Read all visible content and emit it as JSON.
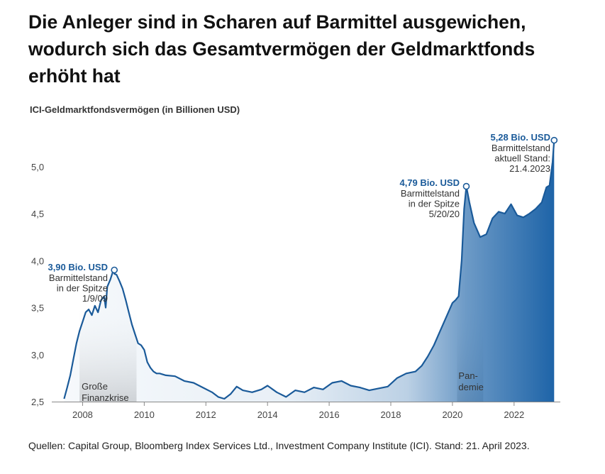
{
  "title": "Die Anleger sind in Scharen auf Barmittel ausgewichen, wodurch sich das Gesamtvermögen der Geldmarktfonds erhöht hat",
  "source": "Quellen: Capital Group, Bloomberg Index Services Ltd., Investment Company Institute (ICI). Stand: 21. April 2023.",
  "colors": {
    "line": "#1a5a99",
    "area": "#1e64a8",
    "shade": "#e4e4e4"
  },
  "chart_data": {
    "type": "area",
    "title": "ICI-Geldmarktfondsvermögen (in Billionen USD)",
    "xlabel": "",
    "ylabel": "",
    "xlim": [
      2007.0,
      2023.5
    ],
    "ylim": [
      2.5,
      5.3
    ],
    "xticks": [
      {
        "value": 2008,
        "label": "2008"
      },
      {
        "value": 2010,
        "label": "2010"
      },
      {
        "value": 2012,
        "label": "2012"
      },
      {
        "value": 2014,
        "label": "2014"
      },
      {
        "value": 2016,
        "label": "2016"
      },
      {
        "value": 2018,
        "label": "2018"
      },
      {
        "value": 2020,
        "label": "2020"
      },
      {
        "value": 2022,
        "label": "2022"
      }
    ],
    "yticks": [
      {
        "value": 2.5,
        "label": "2,5"
      },
      {
        "value": 3.0,
        "label": "3,0"
      },
      {
        "value": 3.5,
        "label": "3,5"
      },
      {
        "value": 4.0,
        "label": "4,0"
      },
      {
        "value": 4.5,
        "label": "4,5"
      },
      {
        "value": 5.0,
        "label": "5,0"
      }
    ],
    "series": [
      {
        "name": "ICI-Geldmarktfondsvermögen",
        "x": [
          2007.4,
          2007.5,
          2007.6,
          2007.7,
          2007.8,
          2007.9,
          2008.0,
          2008.1,
          2008.2,
          2008.3,
          2008.4,
          2008.5,
          2008.6,
          2008.7,
          2008.75,
          2008.8,
          2008.9,
          2009.0,
          2009.03,
          2009.1,
          2009.2,
          2009.3,
          2009.4,
          2009.5,
          2009.6,
          2009.7,
          2009.8,
          2009.9,
          2010.0,
          2010.1,
          2010.2,
          2010.3,
          2010.4,
          2010.5,
          2010.7,
          2011.0,
          2011.3,
          2011.6,
          2011.9,
          2012.2,
          2012.4,
          2012.6,
          2012.8,
          2013.0,
          2013.2,
          2013.5,
          2013.8,
          2014.0,
          2014.3,
          2014.6,
          2014.9,
          2015.2,
          2015.5,
          2015.8,
          2016.1,
          2016.4,
          2016.7,
          2017.0,
          2017.3,
          2017.6,
          2017.9,
          2018.2,
          2018.5,
          2018.8,
          2019.0,
          2019.2,
          2019.4,
          2019.6,
          2019.8,
          2020.0,
          2020.1,
          2020.2,
          2020.3,
          2020.38,
          2020.45,
          2020.55,
          2020.7,
          2020.9,
          2021.1,
          2021.3,
          2021.5,
          2021.7,
          2021.9,
          2022.1,
          2022.3,
          2022.5,
          2022.7,
          2022.9,
          2023.05,
          2023.15,
          2023.25,
          2023.3
        ],
        "values": [
          2.53,
          2.65,
          2.78,
          2.95,
          3.12,
          3.25,
          3.35,
          3.45,
          3.48,
          3.42,
          3.52,
          3.45,
          3.58,
          3.62,
          3.5,
          3.72,
          3.8,
          3.9,
          3.86,
          3.85,
          3.78,
          3.7,
          3.58,
          3.45,
          3.32,
          3.22,
          3.12,
          3.1,
          3.05,
          2.92,
          2.86,
          2.82,
          2.8,
          2.8,
          2.78,
          2.77,
          2.72,
          2.7,
          2.65,
          2.6,
          2.55,
          2.53,
          2.58,
          2.66,
          2.62,
          2.6,
          2.63,
          2.67,
          2.6,
          2.55,
          2.62,
          2.6,
          2.65,
          2.63,
          2.7,
          2.72,
          2.67,
          2.65,
          2.62,
          2.64,
          2.66,
          2.75,
          2.8,
          2.82,
          2.88,
          2.98,
          3.1,
          3.25,
          3.4,
          3.55,
          3.58,
          3.62,
          4.0,
          4.55,
          4.79,
          4.62,
          4.4,
          4.25,
          4.28,
          4.45,
          4.52,
          4.5,
          4.6,
          4.48,
          4.46,
          4.5,
          4.55,
          4.62,
          4.78,
          4.8,
          5.05,
          5.28
        ]
      }
    ],
    "shaded_periods": [
      {
        "start": 2007.9,
        "end": 2009.75,
        "label_lines": [
          "Große",
          "Finanzkrise"
        ]
      },
      {
        "start": 2020.15,
        "end": 2021.0,
        "label_lines": [
          "Pan-",
          "demie"
        ]
      }
    ],
    "annotations": [
      {
        "x": 2009.03,
        "y": 3.9,
        "value": "3,90 Bio. USD",
        "lines": [
          "Barmittelstand",
          "in der Spitze",
          "1/9/09"
        ]
      },
      {
        "x": 2020.45,
        "y": 4.79,
        "value": "4,79 Bio. USD",
        "lines": [
          "Barmittelstand",
          "in der Spitze",
          "5/20/20"
        ]
      },
      {
        "x": 2023.3,
        "y": 5.28,
        "value": "5,28 Bio. USD",
        "lines": [
          "Barmittelstand",
          "aktuell Stand:",
          "21.4.2023"
        ]
      }
    ]
  }
}
